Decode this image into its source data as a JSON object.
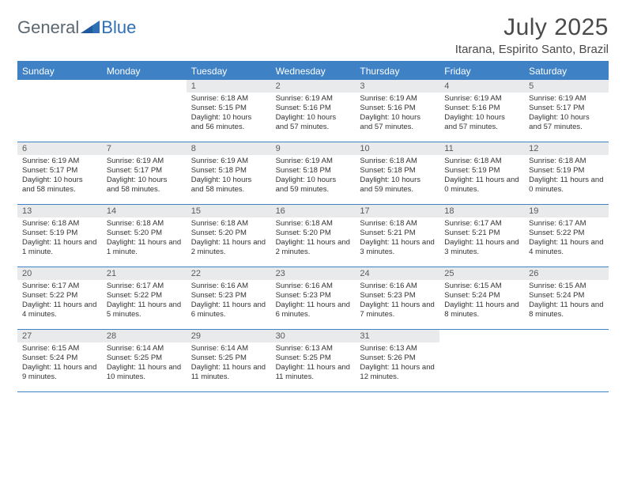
{
  "brand": {
    "word1": "General",
    "word2": "Blue"
  },
  "title": "July 2025",
  "location": "Itarana, Espirito Santo, Brazil",
  "colors": {
    "accent": "#3e81c4",
    "header_bg": "#3e81c4",
    "daynum_bg": "#e9eaeb",
    "text": "#333333",
    "title_text": "#4a4a4a",
    "logo_text": "#5c6770"
  },
  "day_names": [
    "Sunday",
    "Monday",
    "Tuesday",
    "Wednesday",
    "Thursday",
    "Friday",
    "Saturday"
  ],
  "weeks": [
    [
      {
        "blank": true
      },
      {
        "blank": true
      },
      {
        "n": "1",
        "sr": "Sunrise: 6:18 AM",
        "ss": "Sunset: 5:15 PM",
        "dl": "Daylight: 10 hours and 56 minutes."
      },
      {
        "n": "2",
        "sr": "Sunrise: 6:19 AM",
        "ss": "Sunset: 5:16 PM",
        "dl": "Daylight: 10 hours and 57 minutes."
      },
      {
        "n": "3",
        "sr": "Sunrise: 6:19 AM",
        "ss": "Sunset: 5:16 PM",
        "dl": "Daylight: 10 hours and 57 minutes."
      },
      {
        "n": "4",
        "sr": "Sunrise: 6:19 AM",
        "ss": "Sunset: 5:16 PM",
        "dl": "Daylight: 10 hours and 57 minutes."
      },
      {
        "n": "5",
        "sr": "Sunrise: 6:19 AM",
        "ss": "Sunset: 5:17 PM",
        "dl": "Daylight: 10 hours and 57 minutes."
      }
    ],
    [
      {
        "n": "6",
        "sr": "Sunrise: 6:19 AM",
        "ss": "Sunset: 5:17 PM",
        "dl": "Daylight: 10 hours and 58 minutes."
      },
      {
        "n": "7",
        "sr": "Sunrise: 6:19 AM",
        "ss": "Sunset: 5:17 PM",
        "dl": "Daylight: 10 hours and 58 minutes."
      },
      {
        "n": "8",
        "sr": "Sunrise: 6:19 AM",
        "ss": "Sunset: 5:18 PM",
        "dl": "Daylight: 10 hours and 58 minutes."
      },
      {
        "n": "9",
        "sr": "Sunrise: 6:19 AM",
        "ss": "Sunset: 5:18 PM",
        "dl": "Daylight: 10 hours and 59 minutes."
      },
      {
        "n": "10",
        "sr": "Sunrise: 6:18 AM",
        "ss": "Sunset: 5:18 PM",
        "dl": "Daylight: 10 hours and 59 minutes."
      },
      {
        "n": "11",
        "sr": "Sunrise: 6:18 AM",
        "ss": "Sunset: 5:19 PM",
        "dl": "Daylight: 11 hours and 0 minutes."
      },
      {
        "n": "12",
        "sr": "Sunrise: 6:18 AM",
        "ss": "Sunset: 5:19 PM",
        "dl": "Daylight: 11 hours and 0 minutes."
      }
    ],
    [
      {
        "n": "13",
        "sr": "Sunrise: 6:18 AM",
        "ss": "Sunset: 5:19 PM",
        "dl": "Daylight: 11 hours and 1 minute."
      },
      {
        "n": "14",
        "sr": "Sunrise: 6:18 AM",
        "ss": "Sunset: 5:20 PM",
        "dl": "Daylight: 11 hours and 1 minute."
      },
      {
        "n": "15",
        "sr": "Sunrise: 6:18 AM",
        "ss": "Sunset: 5:20 PM",
        "dl": "Daylight: 11 hours and 2 minutes."
      },
      {
        "n": "16",
        "sr": "Sunrise: 6:18 AM",
        "ss": "Sunset: 5:20 PM",
        "dl": "Daylight: 11 hours and 2 minutes."
      },
      {
        "n": "17",
        "sr": "Sunrise: 6:18 AM",
        "ss": "Sunset: 5:21 PM",
        "dl": "Daylight: 11 hours and 3 minutes."
      },
      {
        "n": "18",
        "sr": "Sunrise: 6:17 AM",
        "ss": "Sunset: 5:21 PM",
        "dl": "Daylight: 11 hours and 3 minutes."
      },
      {
        "n": "19",
        "sr": "Sunrise: 6:17 AM",
        "ss": "Sunset: 5:22 PM",
        "dl": "Daylight: 11 hours and 4 minutes."
      }
    ],
    [
      {
        "n": "20",
        "sr": "Sunrise: 6:17 AM",
        "ss": "Sunset: 5:22 PM",
        "dl": "Daylight: 11 hours and 4 minutes."
      },
      {
        "n": "21",
        "sr": "Sunrise: 6:17 AM",
        "ss": "Sunset: 5:22 PM",
        "dl": "Daylight: 11 hours and 5 minutes."
      },
      {
        "n": "22",
        "sr": "Sunrise: 6:16 AM",
        "ss": "Sunset: 5:23 PM",
        "dl": "Daylight: 11 hours and 6 minutes."
      },
      {
        "n": "23",
        "sr": "Sunrise: 6:16 AM",
        "ss": "Sunset: 5:23 PM",
        "dl": "Daylight: 11 hours and 6 minutes."
      },
      {
        "n": "24",
        "sr": "Sunrise: 6:16 AM",
        "ss": "Sunset: 5:23 PM",
        "dl": "Daylight: 11 hours and 7 minutes."
      },
      {
        "n": "25",
        "sr": "Sunrise: 6:15 AM",
        "ss": "Sunset: 5:24 PM",
        "dl": "Daylight: 11 hours and 8 minutes."
      },
      {
        "n": "26",
        "sr": "Sunrise: 6:15 AM",
        "ss": "Sunset: 5:24 PM",
        "dl": "Daylight: 11 hours and 8 minutes."
      }
    ],
    [
      {
        "n": "27",
        "sr": "Sunrise: 6:15 AM",
        "ss": "Sunset: 5:24 PM",
        "dl": "Daylight: 11 hours and 9 minutes."
      },
      {
        "n": "28",
        "sr": "Sunrise: 6:14 AM",
        "ss": "Sunset: 5:25 PM",
        "dl": "Daylight: 11 hours and 10 minutes."
      },
      {
        "n": "29",
        "sr": "Sunrise: 6:14 AM",
        "ss": "Sunset: 5:25 PM",
        "dl": "Daylight: 11 hours and 11 minutes."
      },
      {
        "n": "30",
        "sr": "Sunrise: 6:13 AM",
        "ss": "Sunset: 5:25 PM",
        "dl": "Daylight: 11 hours and 11 minutes."
      },
      {
        "n": "31",
        "sr": "Sunrise: 6:13 AM",
        "ss": "Sunset: 5:26 PM",
        "dl": "Daylight: 11 hours and 12 minutes."
      },
      {
        "blank": true
      },
      {
        "blank": true
      }
    ]
  ]
}
